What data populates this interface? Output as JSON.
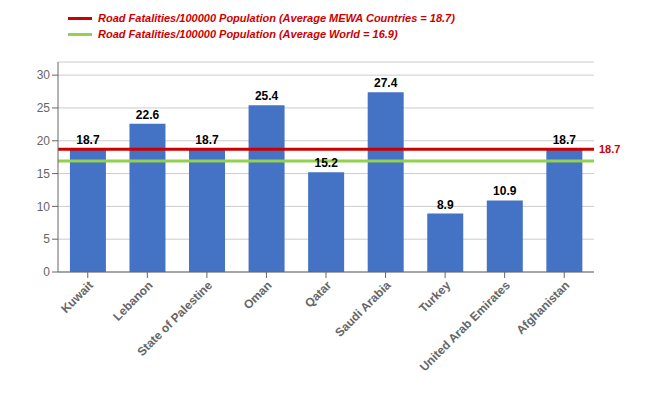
{
  "chart_data": {
    "type": "bar",
    "categories": [
      "Kuwait",
      "Lebanon",
      "State of Palestine",
      "Oman",
      "Qatar",
      "Saudi Arabia",
      "Turkey",
      "United Arab Emirates",
      "Afghanistan"
    ],
    "values": [
      18.7,
      22.6,
      18.7,
      25.4,
      15.2,
      27.4,
      8.9,
      10.9,
      18.7
    ],
    "color": "#4472C4",
    "data_labels": true,
    "ylim": [
      0,
      32
    ],
    "yticks": [
      0,
      5,
      10,
      15,
      20,
      25,
      30
    ],
    "grid": true,
    "reference_lines": [
      {
        "value": 18.7,
        "color": "#CC0000",
        "label": "Road Fatalities/100000 Population  (Average MEWA  Countries = 18.7)",
        "label_color": "#CC0000",
        "annotation": "18.7"
      },
      {
        "value": 16.9,
        "color": "#92D050",
        "label": "Road Fatalities/100000 Population  (Average World = 16.9)",
        "label_color": "#CC0000"
      }
    ]
  }
}
